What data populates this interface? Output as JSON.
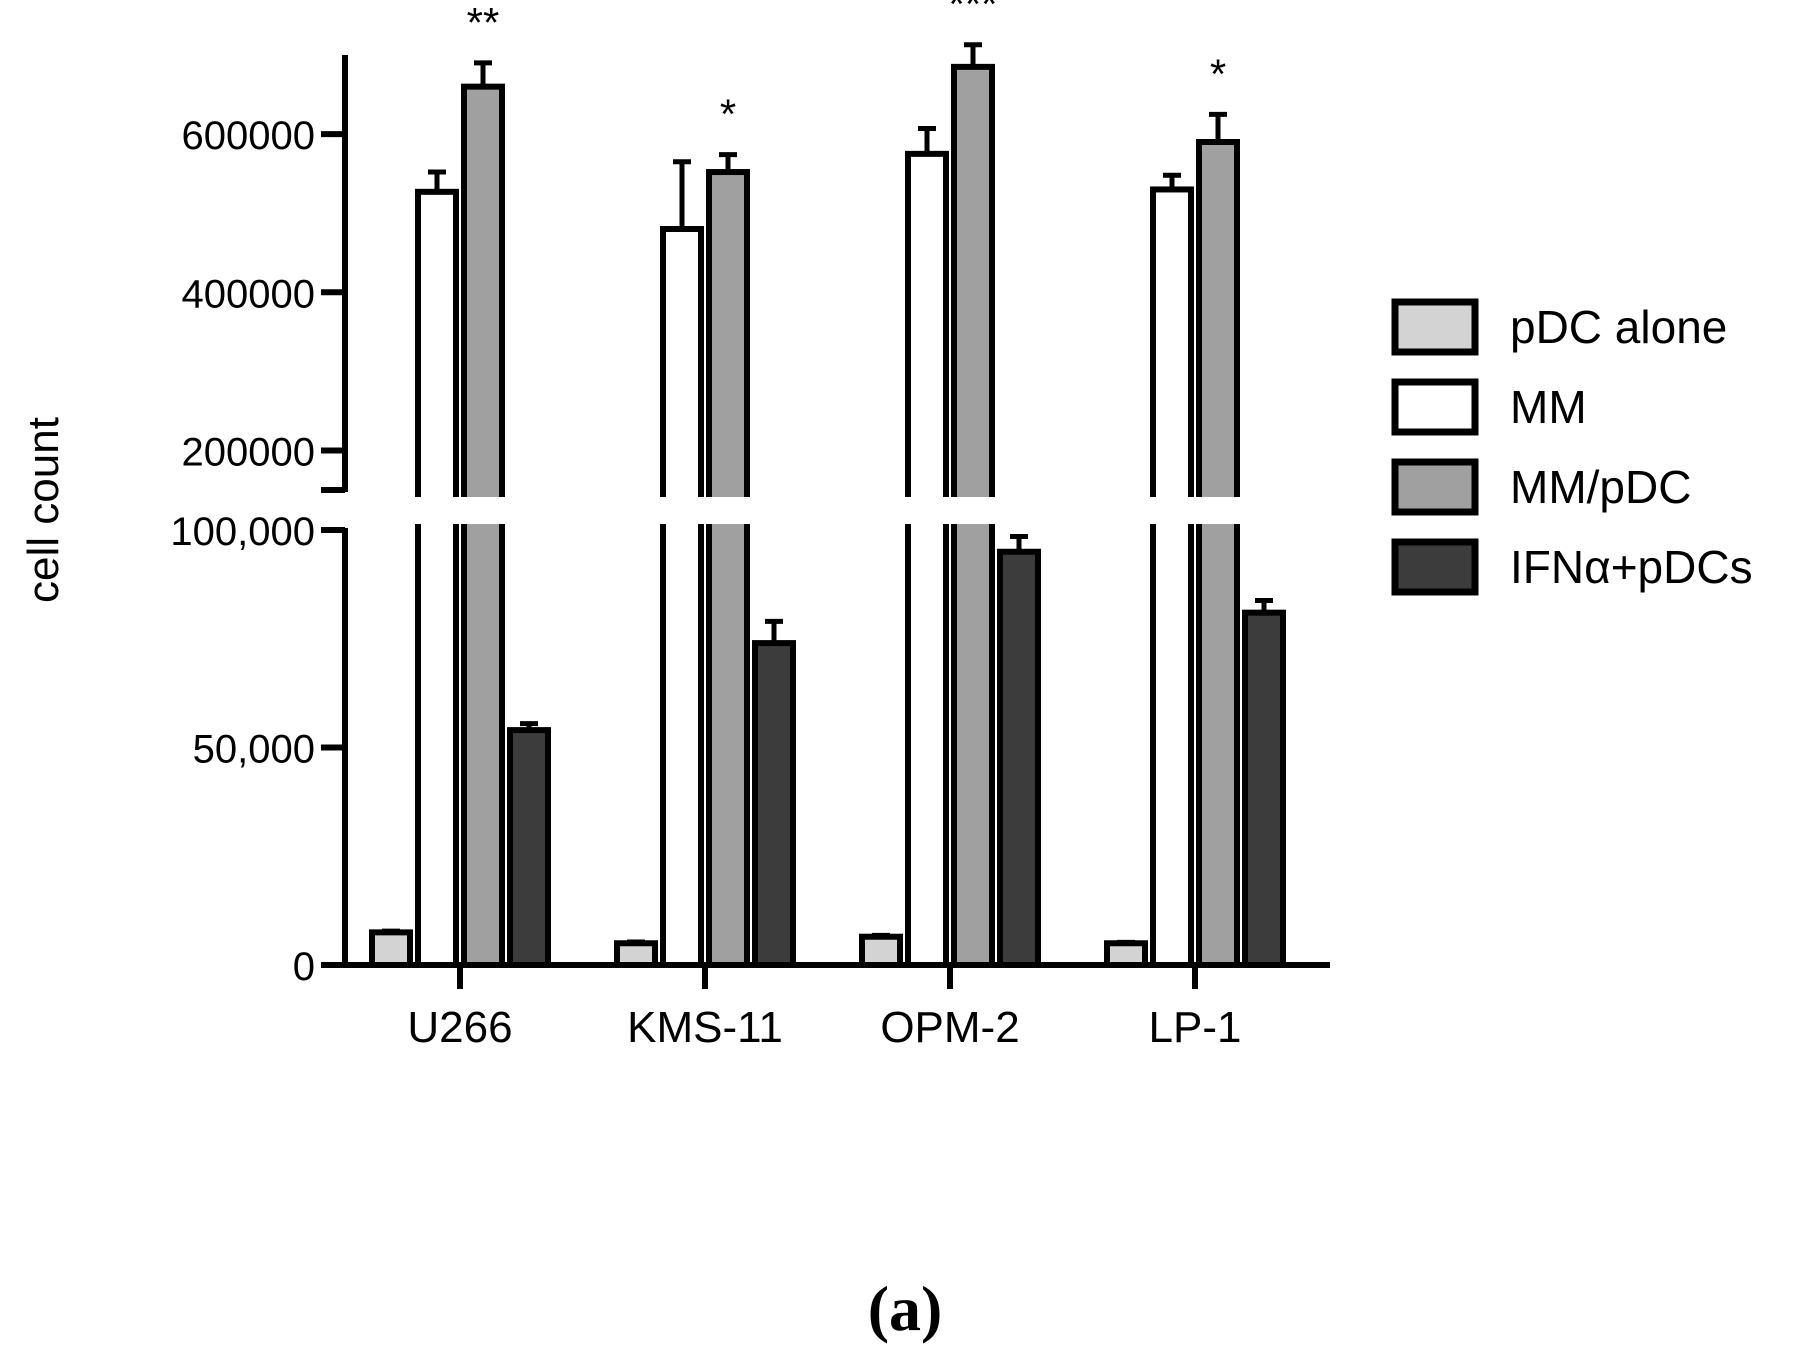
{
  "chart_data": {
    "type": "bar",
    "ylabel": "cell count",
    "panel_label": "(a)",
    "categories": [
      "U266",
      "KMS-11",
      "OPM-2",
      "LP-1"
    ],
    "y_axis": {
      "broken": true,
      "lower_segment": {
        "range": [
          0,
          100000
        ],
        "ticks": [
          0,
          50000,
          100000
        ],
        "tick_labels": [
          "0",
          "50,000",
          "100,000"
        ]
      },
      "upper_segment": {
        "range": [
          150000,
          700000
        ],
        "ticks": [
          200000,
          400000,
          600000
        ],
        "tick_labels": [
          "200000",
          "400000",
          "600000"
        ]
      }
    },
    "series": [
      {
        "name": "pDC alone",
        "color": "#d3d3d3",
        "values": [
          7500,
          5000,
          6500,
          5000
        ],
        "errors": [
          300,
          300,
          300,
          200
        ]
      },
      {
        "name": "MM",
        "color": "#ffffff",
        "values": [
          527000,
          480000,
          575000,
          530000
        ],
        "errors": [
          25000,
          85000,
          32000,
          18000
        ]
      },
      {
        "name": "MM/pDC",
        "color": "#a0a0a0",
        "values": [
          660000,
          552000,
          685000,
          590000
        ],
        "errors": [
          30000,
          22000,
          28000,
          35000
        ]
      },
      {
        "name": "IFNα+pDCs",
        "color": "#3c3c3c",
        "values": [
          54000,
          74000,
          95000,
          81000
        ],
        "errors": [
          1500,
          5000,
          3500,
          2800
        ]
      }
    ],
    "significance": [
      {
        "category": "U266",
        "series": "MM/pDC",
        "label": "**"
      },
      {
        "category": "KMS-11",
        "series": "MM/pDC",
        "label": "*"
      },
      {
        "category": "OPM-2",
        "series": "MM/pDC",
        "label": "***"
      },
      {
        "category": "LP-1",
        "series": "MM/pDC",
        "label": "*"
      }
    ],
    "legend_position": "right"
  }
}
